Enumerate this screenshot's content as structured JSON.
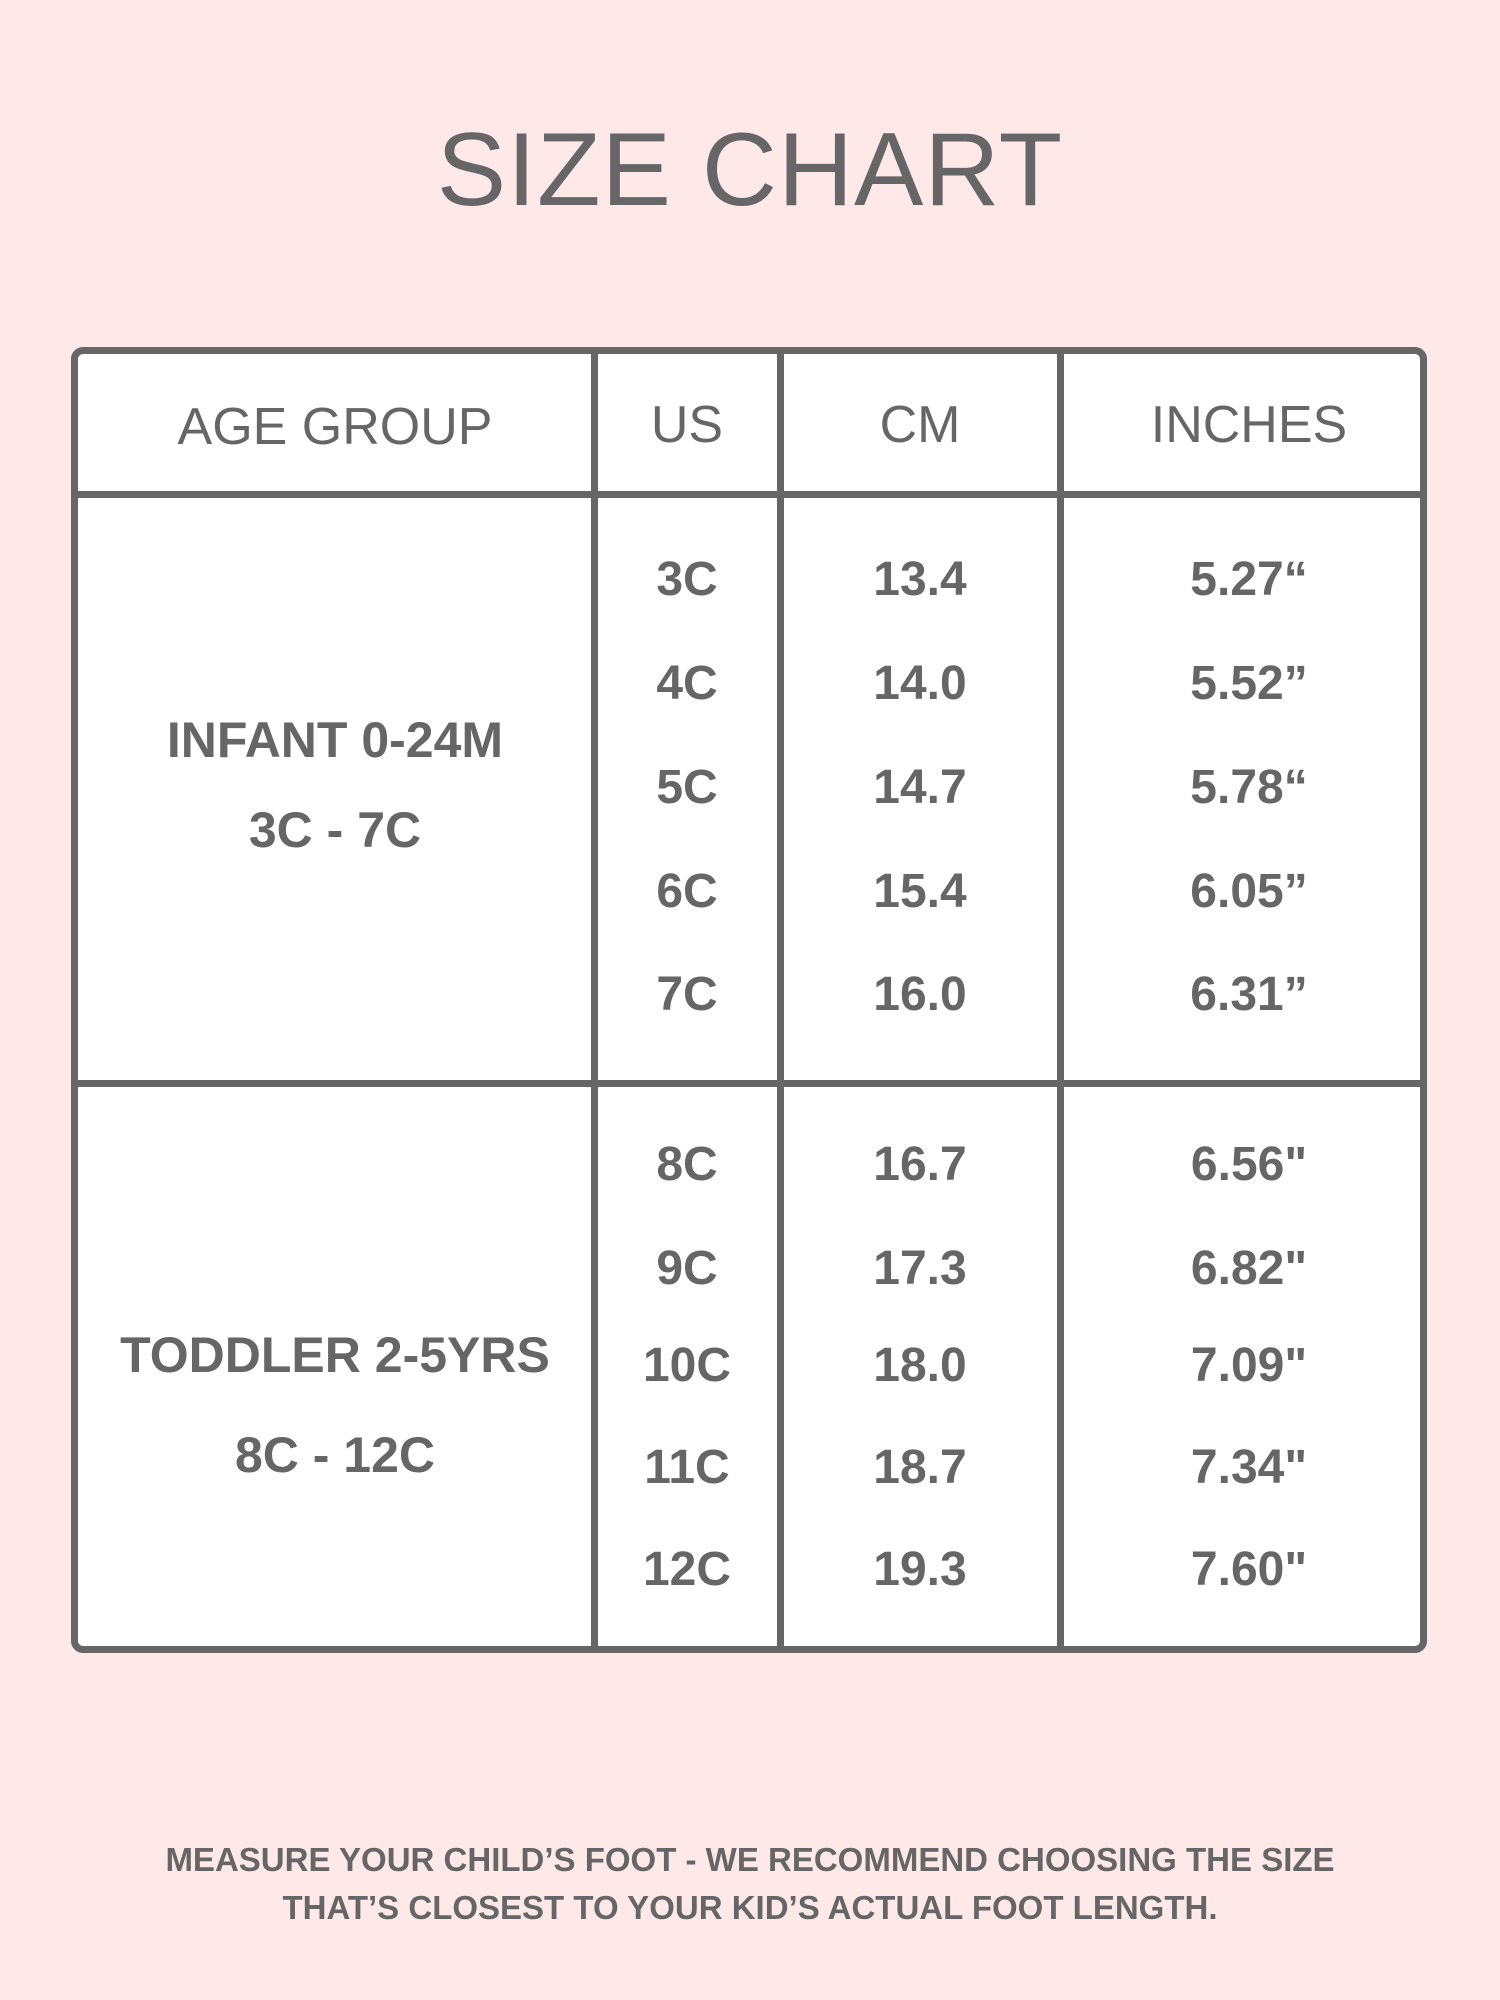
{
  "title": "SIZE CHART",
  "colors": {
    "background": "#fee8e8",
    "text": "#666666",
    "table_border": "#666666",
    "table_fill": "#ffffff"
  },
  "headers": [
    "AGE GROUP",
    "US",
    "CM",
    "INCHES"
  ],
  "groups": [
    {
      "label": "INFANT 0-24M",
      "range": "3C - 7C",
      "rows": [
        {
          "us": "3C",
          "cm": "13.4",
          "inches": "5.27“"
        },
        {
          "us": "4C",
          "cm": "14.0",
          "inches": "5.52”"
        },
        {
          "us": "5C",
          "cm": "14.7",
          "inches": "5.78“"
        },
        {
          "us": "6C",
          "cm": "15.4",
          "inches": "6.05”"
        },
        {
          "us": "7C",
          "cm": "16.0",
          "inches": "6.31”"
        }
      ]
    },
    {
      "label": "TODDLER 2-5YRS",
      "range": "8C - 12C",
      "rows": [
        {
          "us": "8C",
          "cm": "16.7",
          "inches": "6.56\""
        },
        {
          "us": "9C",
          "cm": "17.3",
          "inches": "6.82\""
        },
        {
          "us": "10C",
          "cm": "18.0",
          "inches": "7.09\""
        },
        {
          "us": "11C",
          "cm": "18.7",
          "inches": "7.34\""
        },
        {
          "us": "12C",
          "cm": "19.3",
          "inches": "7.60\""
        }
      ]
    }
  ],
  "footer": {
    "line1": "MEASURE YOUR CHILD’S FOOT - WE RECOMMEND CHOOSING THE SIZE",
    "line2": "THAT’S CLOSEST TO YOUR KID’S ACTUAL FOOT LENGTH."
  }
}
